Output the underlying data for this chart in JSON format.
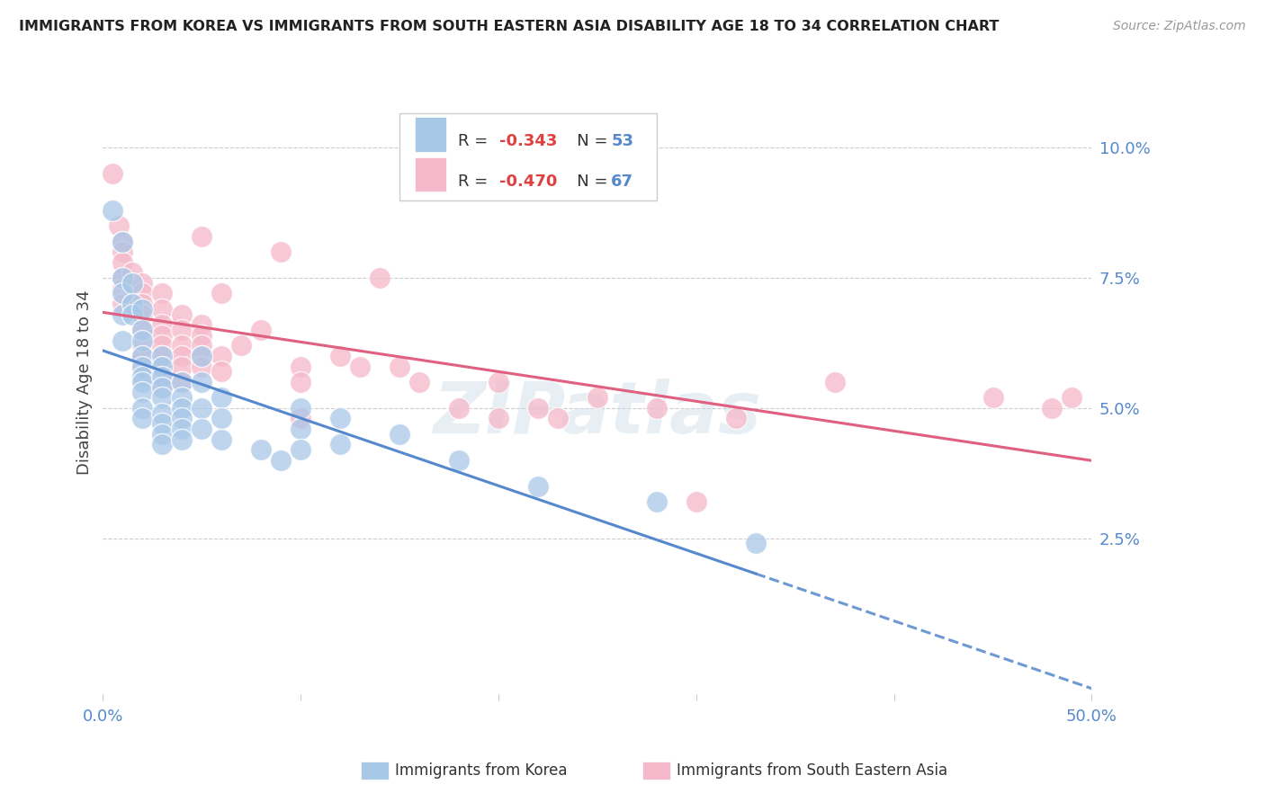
{
  "title": "IMMIGRANTS FROM KOREA VS IMMIGRANTS FROM SOUTH EASTERN ASIA DISABILITY AGE 18 TO 34 CORRELATION CHART",
  "source": "Source: ZipAtlas.com",
  "ylabel": "Disability Age 18 to 34",
  "yticks": [
    0.025,
    0.05,
    0.075,
    0.1
  ],
  "ytick_labels": [
    "2.5%",
    "5.0%",
    "7.5%",
    "10.0%"
  ],
  "xlim": [
    0.0,
    0.5
  ],
  "ylim": [
    -0.005,
    0.115
  ],
  "legend_korea_R": "-0.343",
  "legend_korea_N": "53",
  "legend_sea_R": "-0.470",
  "legend_sea_N": "67",
  "korea_color": "#a8c8e8",
  "sea_color": "#f5b8ca",
  "korea_line_color": "#5588cc",
  "sea_line_color": "#e06080",
  "watermark": "ZIPatlas",
  "bottom_label_korea": "Immigrants from Korea",
  "bottom_label_sea": "Immigrants from South Eastern Asia",
  "korea_scatter": [
    [
      0.005,
      0.088
    ],
    [
      0.01,
      0.082
    ],
    [
      0.01,
      0.075
    ],
    [
      0.01,
      0.072
    ],
    [
      0.01,
      0.068
    ],
    [
      0.01,
      0.063
    ],
    [
      0.015,
      0.074
    ],
    [
      0.015,
      0.07
    ],
    [
      0.015,
      0.068
    ],
    [
      0.02,
      0.069
    ],
    [
      0.02,
      0.065
    ],
    [
      0.02,
      0.063
    ],
    [
      0.02,
      0.06
    ],
    [
      0.02,
      0.058
    ],
    [
      0.02,
      0.056
    ],
    [
      0.02,
      0.055
    ],
    [
      0.02,
      0.053
    ],
    [
      0.02,
      0.05
    ],
    [
      0.02,
      0.048
    ],
    [
      0.03,
      0.06
    ],
    [
      0.03,
      0.058
    ],
    [
      0.03,
      0.056
    ],
    [
      0.03,
      0.054
    ],
    [
      0.03,
      0.052
    ],
    [
      0.03,
      0.049
    ],
    [
      0.03,
      0.047
    ],
    [
      0.03,
      0.045
    ],
    [
      0.03,
      0.043
    ],
    [
      0.04,
      0.055
    ],
    [
      0.04,
      0.052
    ],
    [
      0.04,
      0.05
    ],
    [
      0.04,
      0.048
    ],
    [
      0.04,
      0.046
    ],
    [
      0.04,
      0.044
    ],
    [
      0.05,
      0.06
    ],
    [
      0.05,
      0.055
    ],
    [
      0.05,
      0.05
    ],
    [
      0.05,
      0.046
    ],
    [
      0.06,
      0.052
    ],
    [
      0.06,
      0.048
    ],
    [
      0.06,
      0.044
    ],
    [
      0.08,
      0.042
    ],
    [
      0.09,
      0.04
    ],
    [
      0.1,
      0.05
    ],
    [
      0.1,
      0.046
    ],
    [
      0.1,
      0.042
    ],
    [
      0.12,
      0.048
    ],
    [
      0.12,
      0.043
    ],
    [
      0.15,
      0.045
    ],
    [
      0.18,
      0.04
    ],
    [
      0.22,
      0.035
    ],
    [
      0.28,
      0.032
    ],
    [
      0.33,
      0.024
    ]
  ],
  "sea_scatter": [
    [
      0.005,
      0.095
    ],
    [
      0.008,
      0.085
    ],
    [
      0.01,
      0.082
    ],
    [
      0.01,
      0.08
    ],
    [
      0.01,
      0.078
    ],
    [
      0.01,
      0.075
    ],
    [
      0.01,
      0.073
    ],
    [
      0.01,
      0.07
    ],
    [
      0.015,
      0.076
    ],
    [
      0.015,
      0.073
    ],
    [
      0.015,
      0.07
    ],
    [
      0.02,
      0.074
    ],
    [
      0.02,
      0.072
    ],
    [
      0.02,
      0.07
    ],
    [
      0.02,
      0.068
    ],
    [
      0.02,
      0.065
    ],
    [
      0.02,
      0.062
    ],
    [
      0.02,
      0.06
    ],
    [
      0.02,
      0.058
    ],
    [
      0.03,
      0.072
    ],
    [
      0.03,
      0.069
    ],
    [
      0.03,
      0.066
    ],
    [
      0.03,
      0.064
    ],
    [
      0.03,
      0.062
    ],
    [
      0.03,
      0.06
    ],
    [
      0.03,
      0.058
    ],
    [
      0.03,
      0.056
    ],
    [
      0.03,
      0.054
    ],
    [
      0.04,
      0.068
    ],
    [
      0.04,
      0.065
    ],
    [
      0.04,
      0.062
    ],
    [
      0.04,
      0.06
    ],
    [
      0.04,
      0.058
    ],
    [
      0.04,
      0.055
    ],
    [
      0.05,
      0.083
    ],
    [
      0.05,
      0.066
    ],
    [
      0.05,
      0.064
    ],
    [
      0.05,
      0.062
    ],
    [
      0.05,
      0.06
    ],
    [
      0.05,
      0.058
    ],
    [
      0.06,
      0.072
    ],
    [
      0.06,
      0.06
    ],
    [
      0.06,
      0.057
    ],
    [
      0.07,
      0.062
    ],
    [
      0.08,
      0.065
    ],
    [
      0.09,
      0.08
    ],
    [
      0.1,
      0.058
    ],
    [
      0.1,
      0.055
    ],
    [
      0.1,
      0.048
    ],
    [
      0.12,
      0.06
    ],
    [
      0.13,
      0.058
    ],
    [
      0.14,
      0.075
    ],
    [
      0.15,
      0.058
    ],
    [
      0.16,
      0.055
    ],
    [
      0.18,
      0.05
    ],
    [
      0.2,
      0.055
    ],
    [
      0.2,
      0.048
    ],
    [
      0.22,
      0.05
    ],
    [
      0.23,
      0.048
    ],
    [
      0.25,
      0.052
    ],
    [
      0.28,
      0.05
    ],
    [
      0.3,
      0.032
    ],
    [
      0.32,
      0.048
    ],
    [
      0.37,
      0.055
    ],
    [
      0.45,
      0.052
    ],
    [
      0.48,
      0.05
    ],
    [
      0.49,
      0.052
    ]
  ]
}
